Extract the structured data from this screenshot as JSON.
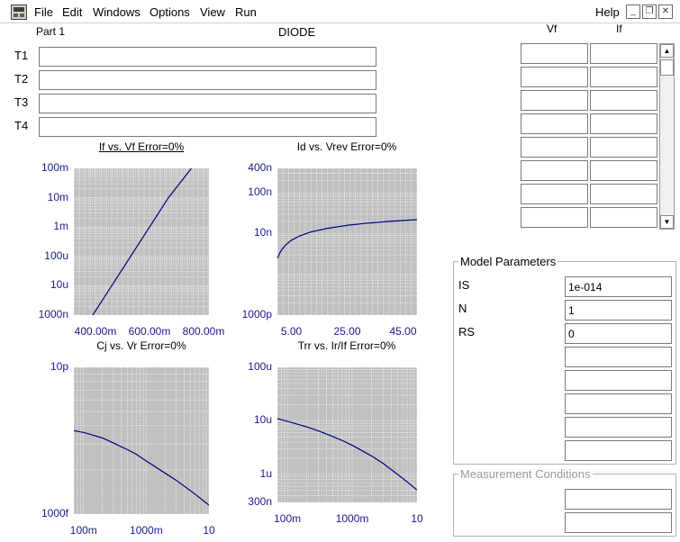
{
  "menu": {
    "file": "File",
    "edit": "Edit",
    "windows": "Windows",
    "options": "Options",
    "view": "View",
    "run": "Run",
    "help": "Help"
  },
  "header": {
    "part": "Part 1",
    "device": "DIODE"
  },
  "tfields": [
    {
      "label": "T1",
      "value": ""
    },
    {
      "label": "T2",
      "value": ""
    },
    {
      "label": "T3",
      "value": ""
    },
    {
      "label": "T4",
      "value": ""
    }
  ],
  "grid_table": {
    "columns": [
      "Vf",
      "If"
    ],
    "rows": [
      [
        "",
        ""
      ],
      [
        "",
        ""
      ],
      [
        "",
        ""
      ],
      [
        "",
        ""
      ],
      [
        "",
        ""
      ],
      [
        "",
        ""
      ],
      [
        "",
        ""
      ],
      [
        "",
        ""
      ]
    ]
  },
  "model_parameters": {
    "title": "Model Parameters",
    "params": [
      {
        "name": "IS",
        "value": "1e-014"
      },
      {
        "name": "N",
        "value": "1"
      },
      {
        "name": "RS",
        "value": "0"
      },
      {
        "name": "",
        "value": ""
      },
      {
        "name": "",
        "value": ""
      },
      {
        "name": "",
        "value": ""
      },
      {
        "name": "",
        "value": ""
      },
      {
        "name": "",
        "value": ""
      }
    ]
  },
  "measurement_conditions": {
    "title": "Measurement Conditions",
    "values": [
      "",
      ""
    ]
  },
  "colors": {
    "plot_bg": "#c0c0c0",
    "grid": "#ffffff",
    "curve": "#000080",
    "tick_text": "#1a1a8c"
  },
  "chart_data": [
    {
      "type": "line",
      "title": "If vs. Vf Error=0%",
      "xscale": "linear",
      "yscale": "log",
      "xlim": [
        0.32,
        0.82
      ],
      "ylim": [
        1e-06,
        0.1
      ],
      "xticks": [
        {
          "v": 0.4,
          "label": "400.00m"
        },
        {
          "v": 0.6,
          "label": "600.00m"
        },
        {
          "v": 0.8,
          "label": "800.00m"
        }
      ],
      "yticks": [
        {
          "v": 0.1,
          "label": "100m"
        },
        {
          "v": 0.01,
          "label": "10m"
        },
        {
          "v": 0.001,
          "label": "1m"
        },
        {
          "v": 0.0001,
          "label": "100u"
        },
        {
          "v": 1e-05,
          "label": "10u"
        },
        {
          "v": 1e-06,
          "label": "1000n"
        }
      ],
      "series": [
        {
          "x": [
            0.39,
            0.53,
            0.67,
            0.755
          ],
          "y": [
            1e-06,
            0.0001,
            0.01,
            0.1
          ]
        }
      ]
    },
    {
      "type": "line",
      "title": "Id vs. Vrev Error=0%",
      "xscale": "linear",
      "yscale": "log",
      "xlim": [
        0,
        50
      ],
      "ylim": [
        1e-10,
        4e-07
      ],
      "xticks": [
        {
          "v": 5,
          "label": "5.00"
        },
        {
          "v": 25,
          "label": "25.00"
        },
        {
          "v": 45,
          "label": "45.00"
        }
      ],
      "yticks": [
        {
          "v": 4e-07,
          "label": "400n"
        },
        {
          "v": 1e-07,
          "label": "100n"
        },
        {
          "v": 1e-08,
          "label": "10n"
        },
        {
          "v": 1e-10,
          "label": "1000p"
        }
      ],
      "series": [
        {
          "x": [
            0,
            1,
            2,
            3,
            5,
            8,
            12,
            18,
            25,
            32,
            40,
            50
          ],
          "y": [
            2.5e-09,
            3.5e-09,
            4.4e-09,
            5.3e-09,
            6.9e-09,
            8.8e-09,
            1.1e-08,
            1.35e-08,
            1.6e-08,
            1.8e-08,
            2e-08,
            2.2e-08
          ]
        }
      ]
    },
    {
      "type": "line",
      "title": "Cj vs. Vr Error=0%",
      "xscale": "log",
      "yscale": "log",
      "xlim": [
        0.07,
        10
      ],
      "ylim": [
        1e-12,
        1e-11
      ],
      "xticks": [
        {
          "v": 0.1,
          "label": "100m"
        },
        {
          "v": 1,
          "label": "1000m"
        },
        {
          "v": 10,
          "label": "10"
        }
      ],
      "yticks": [
        {
          "v": 1e-11,
          "label": "10p"
        },
        {
          "v": 1e-12,
          "label": "1000f"
        }
      ],
      "series": [
        {
          "x": [
            0.07,
            0.1,
            0.2,
            0.3,
            0.5,
            0.7,
            1,
            2,
            3,
            5,
            7,
            10
          ],
          "y": [
            3.7e-12,
            3.6e-12,
            3.3e-12,
            3.05e-12,
            2.75e-12,
            2.55e-12,
            2.3e-12,
            1.9e-12,
            1.7e-12,
            1.45e-12,
            1.3e-12,
            1.15e-12
          ]
        }
      ]
    },
    {
      "type": "line",
      "title": "Trr vs. Ir/If Error=0%",
      "xscale": "log",
      "yscale": "log",
      "xlim": [
        0.07,
        10
      ],
      "ylim": [
        3e-07,
        0.0001
      ],
      "xticks": [
        {
          "v": 0.1,
          "label": "100m"
        },
        {
          "v": 1,
          "label": "1000m"
        },
        {
          "v": 10,
          "label": "10"
        }
      ],
      "yticks": [
        {
          "v": 0.0001,
          "label": "100u"
        },
        {
          "v": 1e-05,
          "label": "10u"
        },
        {
          "v": 1e-06,
          "label": "1u"
        },
        {
          "v": 3e-07,
          "label": "300n"
        }
      ],
      "series": [
        {
          "x": [
            0.07,
            0.1,
            0.2,
            0.3,
            0.5,
            0.7,
            1,
            2,
            3,
            5,
            7,
            10
          ],
          "y": [
            1.1e-05,
            9.8e-06,
            7.7e-06,
            6.5e-06,
            5.1e-06,
            4.3e-06,
            3.5e-06,
            2.2e-06,
            1.6e-06,
            1e-06,
            7.3e-07,
            5.1e-07
          ]
        }
      ]
    }
  ]
}
